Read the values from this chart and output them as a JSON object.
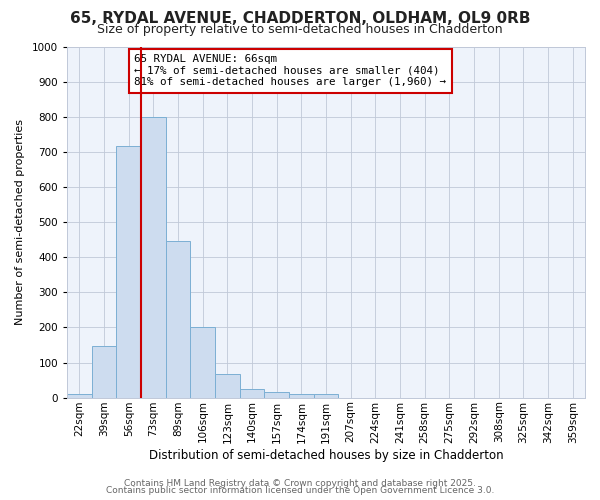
{
  "title1": "65, RYDAL AVENUE, CHADDERTON, OLDHAM, OL9 0RB",
  "title2": "Size of property relative to semi-detached houses in Chadderton",
  "xlabel": "Distribution of semi-detached houses by size in Chadderton",
  "ylabel": "Number of semi-detached properties",
  "categories": [
    "22sqm",
    "39sqm",
    "56sqm",
    "73sqm",
    "89sqm",
    "106sqm",
    "123sqm",
    "140sqm",
    "157sqm",
    "174sqm",
    "191sqm",
    "207sqm",
    "224sqm",
    "241sqm",
    "258sqm",
    "275sqm",
    "292sqm",
    "308sqm",
    "325sqm",
    "342sqm",
    "359sqm"
  ],
  "values": [
    10,
    148,
    718,
    800,
    445,
    200,
    68,
    25,
    15,
    10,
    10,
    0,
    0,
    0,
    0,
    0,
    0,
    0,
    0,
    0,
    0
  ],
  "bar_color": "#cddcef",
  "bar_edge_color": "#7bafd4",
  "vline_x": 2.5,
  "vline_color": "#cc0000",
  "annotation_text": "65 RYDAL AVENUE: 66sqm\n← 17% of semi-detached houses are smaller (404)\n81% of semi-detached houses are larger (1,960) →",
  "annotation_box_color": "#ffffff",
  "annotation_box_edge": "#cc0000",
  "ylim": [
    0,
    1000
  ],
  "yticks": [
    0,
    100,
    200,
    300,
    400,
    500,
    600,
    700,
    800,
    900,
    1000
  ],
  "plot_bg_color": "#eef3fb",
  "fig_bg_color": "#ffffff",
  "footer1": "Contains HM Land Registry data © Crown copyright and database right 2025.",
  "footer2": "Contains public sector information licensed under the Open Government Licence 3.0.",
  "title1_fontsize": 11,
  "title2_fontsize": 9,
  "xlabel_fontsize": 8.5,
  "ylabel_fontsize": 8,
  "tick_fontsize": 7.5,
  "annotation_fontsize": 7.8,
  "footer_fontsize": 6.5,
  "grid_color": "#c0c8d8"
}
